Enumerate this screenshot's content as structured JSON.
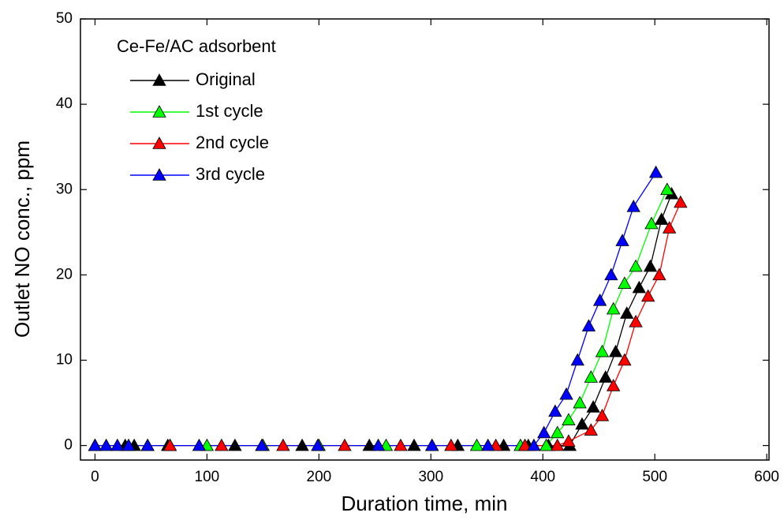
{
  "chart_data": {
    "type": "line",
    "x_label": "Duration time, min",
    "y_label": "Outlet NO conc., ppm",
    "legend_title": "Ce-Fe/AC adsorbent",
    "legend": "top-left",
    "xlim": [
      -13,
      602
    ],
    "xticks": [
      0,
      100,
      200,
      300,
      400,
      500,
      600
    ],
    "ylim": [
      -1.7,
      50
    ],
    "yticks": [
      0,
      10,
      20,
      30,
      40,
      50
    ],
    "series": [
      {
        "name": "Original",
        "color": "#000000",
        "x": [
          0,
          27,
          35,
          65,
          125,
          185,
          245,
          285,
          324,
          365,
          387,
          405,
          424,
          435,
          445,
          456,
          465,
          475,
          486,
          496,
          506,
          515
        ],
        "values": [
          0,
          0,
          0,
          0,
          0,
          0,
          0,
          0,
          0,
          0,
          0,
          0,
          0,
          2.5,
          4.5,
          8,
          11,
          15.5,
          18.5,
          21,
          26.5,
          29.5
        ]
      },
      {
        "name": "1st cycle",
        "color": "#00ff00",
        "x": [
          0,
          47,
          67,
          100,
          150,
          200,
          260,
          301,
          341,
          380,
          403,
          413,
          423,
          433,
          443,
          453,
          463,
          473,
          483,
          497,
          511
        ],
        "values": [
          0,
          0,
          0,
          0,
          0,
          0,
          0,
          0,
          0,
          0,
          0,
          1.5,
          3,
          5,
          8,
          11,
          16,
          19,
          21,
          26,
          30
        ]
      },
      {
        "name": "2nd cycle",
        "color": "#ff0000",
        "x": [
          0,
          67,
          113,
          168,
          223,
          273,
          318,
          358,
          384,
          413,
          423,
          443,
          453,
          463,
          473,
          483,
          494,
          504,
          513,
          523
        ],
        "values": [
          0,
          0,
          0,
          0,
          0,
          0,
          0,
          0,
          0,
          0,
          0.5,
          1.8,
          3.5,
          7,
          10,
          14.5,
          17.5,
          20,
          25.5,
          28.5
        ]
      },
      {
        "name": "3rd cycle",
        "color": "#0000ff",
        "x": [
          0,
          10,
          20,
          30,
          47,
          93,
          149,
          199,
          253,
          301,
          351,
          392,
          401,
          411,
          421,
          431,
          441,
          451,
          461,
          471,
          481,
          501
        ],
        "values": [
          0,
          0,
          0,
          0,
          0,
          0,
          0,
          0,
          0,
          0,
          0,
          0,
          1.5,
          4,
          6,
          10,
          14,
          17,
          20,
          24,
          28,
          32
        ]
      }
    ]
  }
}
